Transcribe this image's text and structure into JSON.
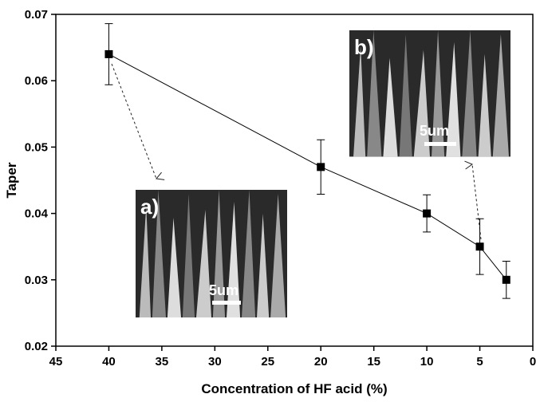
{
  "chart_data": {
    "type": "line",
    "x_label": "Concentration of HF acid (%)",
    "y_label": "Taper",
    "xlim": [
      45,
      0
    ],
    "xticks": [
      45,
      40,
      35,
      30,
      25,
      20,
      15,
      10,
      5,
      0
    ],
    "ylim": [
      0.02,
      0.07
    ],
    "yticks": [
      0.02,
      0.03,
      0.04,
      0.05,
      0.06,
      0.07
    ],
    "series": [
      {
        "color": "#000000",
        "x": [
          40,
          20,
          10,
          5,
          2.5
        ],
        "values": [
          0.064,
          0.047,
          0.04,
          0.035,
          0.03
        ],
        "errors": [
          0.0046,
          0.0041,
          0.0028,
          0.0042,
          0.0028
        ]
      }
    ],
    "insets": [
      {
        "label": "a)",
        "scale": "5um"
      },
      {
        "label": "b)",
        "scale": "5um"
      }
    ]
  }
}
